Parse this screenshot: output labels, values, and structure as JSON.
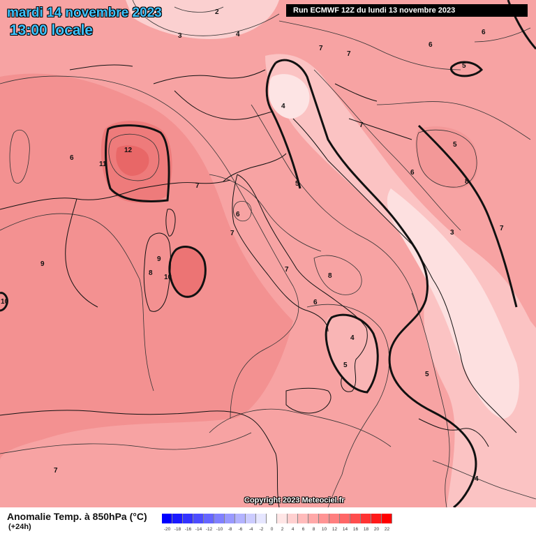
{
  "header": {
    "date": "mardi 14 novembre 2023",
    "time": "13:00 locale",
    "run": "Run ECMWF 12Z du lundi 13 novembre 2023"
  },
  "copyright": "Copyright 2023 Meteociel.fr",
  "legend": {
    "title": "Anomalie Temp. à 850hPa (°C)",
    "offset": "(+24h)",
    "ticks": [
      "-20",
      "-18",
      "-16",
      "-14",
      "-12",
      "-10",
      "-8",
      "-6",
      "-4",
      "-2",
      "0",
      "2",
      "4",
      "6",
      "8",
      "10",
      "12",
      "14",
      "16",
      "18",
      "20",
      "22"
    ],
    "colors": [
      "#0000ff",
      "#1a1aff",
      "#3333ff",
      "#4d4dff",
      "#6666ff",
      "#8080ff",
      "#9999ff",
      "#b3b3ff",
      "#ccccff",
      "#e6e6ff",
      "#ffffff",
      "#ffe6e6",
      "#ffd0d0",
      "#ffbbbb",
      "#ffa8a8",
      "#ff9494",
      "#ff7f7f",
      "#ff6666",
      "#ff4d4d",
      "#ff3333",
      "#ff1a1a",
      "#ff0000"
    ]
  },
  "contour_labels": [
    "2",
    "3",
    "4",
    "6",
    "7",
    "5",
    "6",
    "6",
    "5",
    "4",
    "7",
    "6",
    "12",
    "11",
    "7",
    "5",
    "6",
    "7",
    "7",
    "8",
    "3",
    "7",
    "9",
    "9",
    "8",
    "10",
    "10",
    "6",
    "4",
    "5",
    "5",
    "4",
    "7",
    "8",
    "7"
  ]
}
